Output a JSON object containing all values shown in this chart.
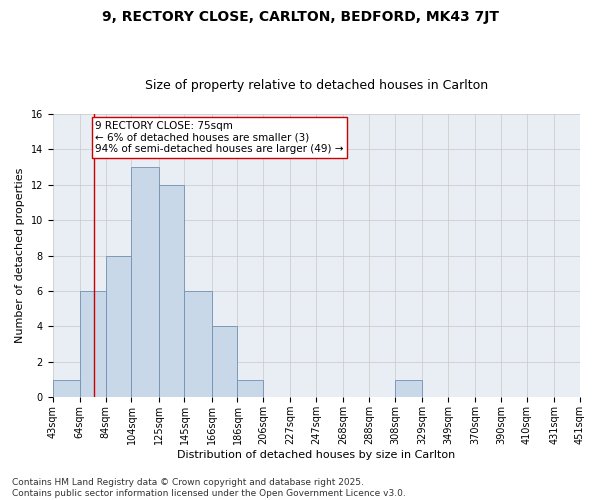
{
  "title1": "9, RECTORY CLOSE, CARLTON, BEDFORD, MK43 7JT",
  "title2": "Size of property relative to detached houses in Carlton",
  "xlabel": "Distribution of detached houses by size in Carlton",
  "ylabel": "Number of detached properties",
  "bin_labels": [
    "43sqm",
    "64sqm",
    "84sqm",
    "104sqm",
    "125sqm",
    "145sqm",
    "166sqm",
    "186sqm",
    "206sqm",
    "227sqm",
    "247sqm",
    "268sqm",
    "288sqm",
    "308sqm",
    "329sqm",
    "349sqm",
    "370sqm",
    "390sqm",
    "410sqm",
    "431sqm",
    "451sqm"
  ],
  "bin_edges": [
    43,
    64,
    84,
    104,
    125,
    145,
    166,
    186,
    206,
    227,
    247,
    268,
    288,
    308,
    329,
    349,
    370,
    390,
    410,
    431,
    451
  ],
  "bar_heights": [
    1,
    6,
    8,
    13,
    12,
    6,
    4,
    1,
    0,
    0,
    0,
    0,
    0,
    1,
    0,
    0,
    0,
    0,
    0,
    0
  ],
  "bar_color": "#c8d8e8",
  "bar_edge_color": "#7090b0",
  "vline_x": 75,
  "vline_color": "#cc0000",
  "annotation_text": "9 RECTORY CLOSE: 75sqm\n← 6% of detached houses are smaller (3)\n94% of semi-detached houses are larger (49) →",
  "annotation_box_color": "#ffffff",
  "annotation_box_edge": "#cc0000",
  "ylim": [
    0,
    16
  ],
  "yticks": [
    0,
    2,
    4,
    6,
    8,
    10,
    12,
    14,
    16
  ],
  "background_color": "#e8eef4",
  "footer_text": "Contains HM Land Registry data © Crown copyright and database right 2025.\nContains public sector information licensed under the Open Government Licence v3.0.",
  "title1_fontsize": 10,
  "title2_fontsize": 9,
  "axis_label_fontsize": 8,
  "tick_fontsize": 7,
  "annotation_fontsize": 7.5,
  "footer_fontsize": 6.5
}
